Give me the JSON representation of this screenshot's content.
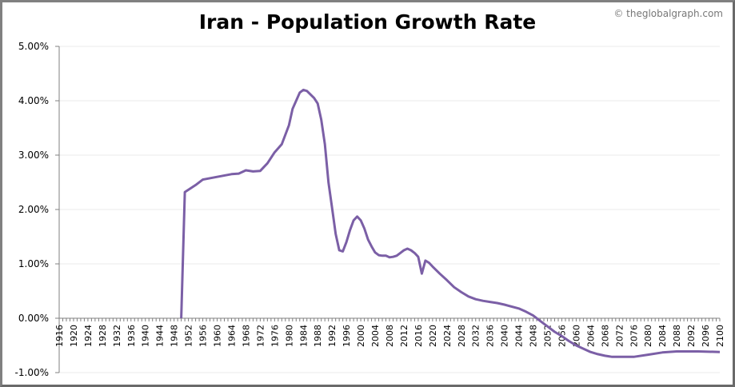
{
  "chart_data": {
    "type": "line",
    "title": "Iran - Population Growth Rate",
    "credit": "© theglobalgraph.com",
    "xlabel": "",
    "ylabel": "",
    "xlim": [
      1916,
      2100
    ],
    "ylim": [
      -1,
      5
    ],
    "y_ticks": [
      "5.00%",
      "4.00%",
      "3.00%",
      "2.00%",
      "1.00%",
      "0.00%",
      "-1.00%"
    ],
    "y_tick_values": [
      5,
      4,
      3,
      2,
      1,
      0,
      -1
    ],
    "x_tick_step": 4,
    "grid": true,
    "line_color": "#7b5fa6",
    "series": [
      {
        "x": [
          1950,
          1951,
          1954,
          1956,
          1960,
          1964,
          1966,
          1968,
          1970,
          1972,
          1974,
          1976,
          1978,
          1980,
          1981,
          1983,
          1984,
          1985,
          1987,
          1988,
          1989,
          1990,
          1991,
          1992,
          1993,
          1994,
          1995,
          1996,
          1997,
          1998,
          1999,
          2000,
          2001,
          2002,
          2003,
          2004,
          2005,
          2006,
          2007,
          2008,
          2009,
          2010,
          2011,
          2012,
          2013,
          2014,
          2015,
          2016,
          2017,
          2018,
          2019,
          2020,
          2022,
          2024,
          2026,
          2028,
          2030,
          2032,
          2034,
          2036,
          2038,
          2040,
          2044,
          2046,
          2048,
          2050,
          2052,
          2054,
          2056,
          2058,
          2060,
          2062,
          2064,
          2066,
          2068,
          2070,
          2076,
          2080,
          2084,
          2088,
          2094,
          2100
        ],
        "y": [
          0,
          2.32,
          2.45,
          2.55,
          2.6,
          2.65,
          2.66,
          2.72,
          2.7,
          2.71,
          2.85,
          3.05,
          3.2,
          3.55,
          3.85,
          4.15,
          4.2,
          4.18,
          4.05,
          3.95,
          3.65,
          3.2,
          2.5,
          2.03,
          1.55,
          1.25,
          1.23,
          1.4,
          1.62,
          1.8,
          1.87,
          1.8,
          1.65,
          1.45,
          1.32,
          1.21,
          1.16,
          1.15,
          1.15,
          1.12,
          1.13,
          1.15,
          1.2,
          1.25,
          1.28,
          1.25,
          1.2,
          1.13,
          0.82,
          1.06,
          1.02,
          0.95,
          0.82,
          0.7,
          0.57,
          0.48,
          0.4,
          0.35,
          0.32,
          0.3,
          0.28,
          0.25,
          0.18,
          0.12,
          0.05,
          -0.05,
          -0.15,
          -0.25,
          -0.33,
          -0.42,
          -0.5,
          -0.56,
          -0.62,
          -0.66,
          -0.69,
          -0.71,
          -0.71,
          -0.67,
          -0.63,
          -0.61,
          -0.61,
          -0.62
        ]
      }
    ]
  }
}
